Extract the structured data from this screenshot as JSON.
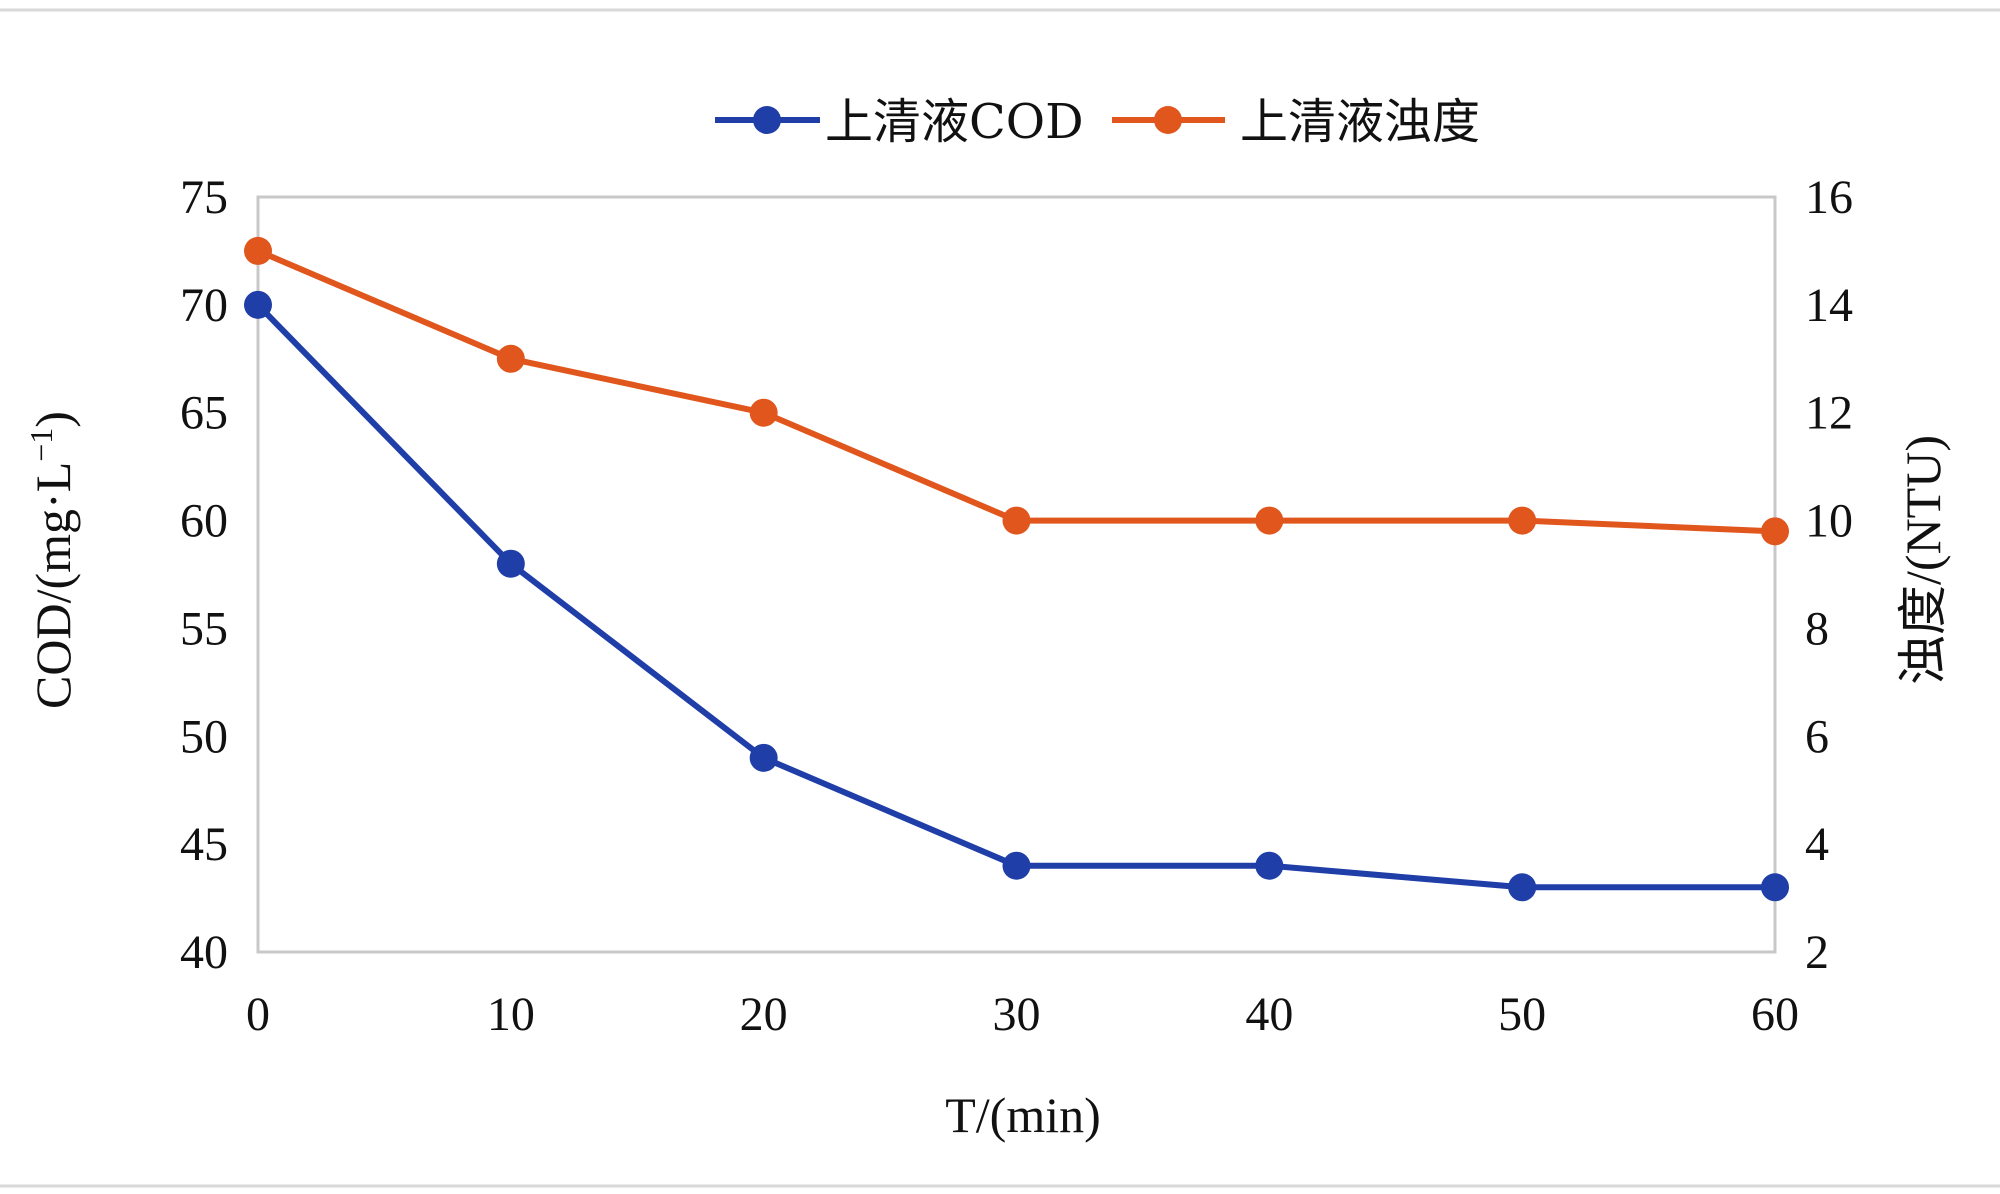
{
  "chart_data": {
    "type": "line",
    "x": [
      0,
      10,
      20,
      30,
      40,
      50,
      60
    ],
    "series": [
      {
        "name": "上清液COD",
        "axis": "left",
        "color": "#1f3ea8",
        "values": [
          70,
          58,
          49,
          44,
          44,
          43,
          43
        ]
      },
      {
        "name": "上清液浊度",
        "axis": "right",
        "color": "#e0561c",
        "values": [
          15,
          13,
          12,
          10,
          10,
          10,
          9.8
        ]
      }
    ],
    "xlabel": "T/(min)",
    "ylabel_left": "COD/(mg·L",
    "ylabel_left_sup": "−1",
    "ylabel_left_close": ")",
    "ylabel_right": "浊度/(NTU)",
    "xlim": [
      0,
      60
    ],
    "ylim_left": [
      40,
      75
    ],
    "ylim_right": [
      2,
      16
    ],
    "x_ticks": [
      "0",
      "10",
      "20",
      "30",
      "40",
      "50",
      "60"
    ],
    "y_left_ticks": [
      "40",
      "45",
      "50",
      "55",
      "60",
      "65",
      "70",
      "75"
    ],
    "y_right_ticks": [
      "2",
      "4",
      "6",
      "8",
      "10",
      "12",
      "14",
      "16"
    ],
    "legend_position": "top-center",
    "grid": false,
    "frame_color": "#c8c8c8"
  }
}
